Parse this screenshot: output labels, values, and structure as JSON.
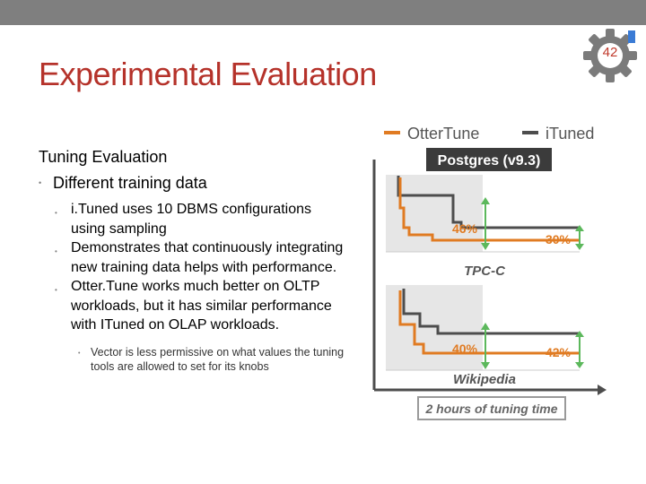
{
  "slide": {
    "page_number": "42",
    "title": "Experimental Evaluation"
  },
  "content": {
    "heading": "Tuning Evaluation",
    "bullet1": "Different training data",
    "sub_bullets": [
      "i.Tuned uses 10 DBMS configurations using sampling",
      "Demonstrates that continuously integrating new training data helps with performance.",
      "Otter.Tune works much better on OLTP workloads, but it has similar performance with ITuned on OLAP workloads."
    ],
    "sub_sub_bullet": "Vector is less permissive on what values the tuning tools are allowed to set for its knobs"
  },
  "figure": {
    "legend": {
      "ottertune": "OtterTune",
      "ituned": "iTuned"
    },
    "title": "Postgres (v9.3)",
    "panel1": {
      "label": "TPC-C",
      "left_pct": "46%",
      "right_pct": "30%"
    },
    "panel2": {
      "label": "Wikipedia",
      "left_pct": "40%",
      "right_pct": "42%"
    },
    "footer": "2 hours of tuning time",
    "colors": {
      "ottertune": "#e07b22",
      "ituned": "#4d4d4d",
      "arrow": "#5cb85c",
      "title_bg": "#3b3b3b"
    }
  }
}
